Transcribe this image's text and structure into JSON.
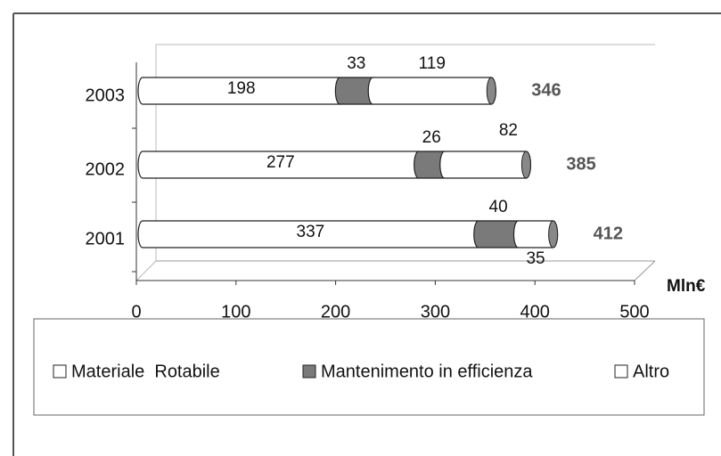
{
  "chart_data": {
    "type": "bar",
    "orientation": "horizontal",
    "stacked": true,
    "categories": [
      "2001",
      "2002",
      "2003"
    ],
    "series": [
      {
        "name": "Materiale  Rotabile",
        "color": "#ffffff",
        "values": [
          337,
          277,
          198
        ]
      },
      {
        "name": "Mantenimento in efficienza",
        "color": "#7a7a7a",
        "values": [
          40,
          26,
          33
        ]
      },
      {
        "name": "Altro",
        "color": "#ffffff",
        "values": [
          35,
          82,
          119
        ]
      }
    ],
    "totals": [
      412,
      385,
      346
    ],
    "x_label": "Mln€",
    "xlim": [
      0,
      500
    ],
    "xticks": [
      0,
      100,
      200,
      300,
      400,
      500
    ]
  }
}
